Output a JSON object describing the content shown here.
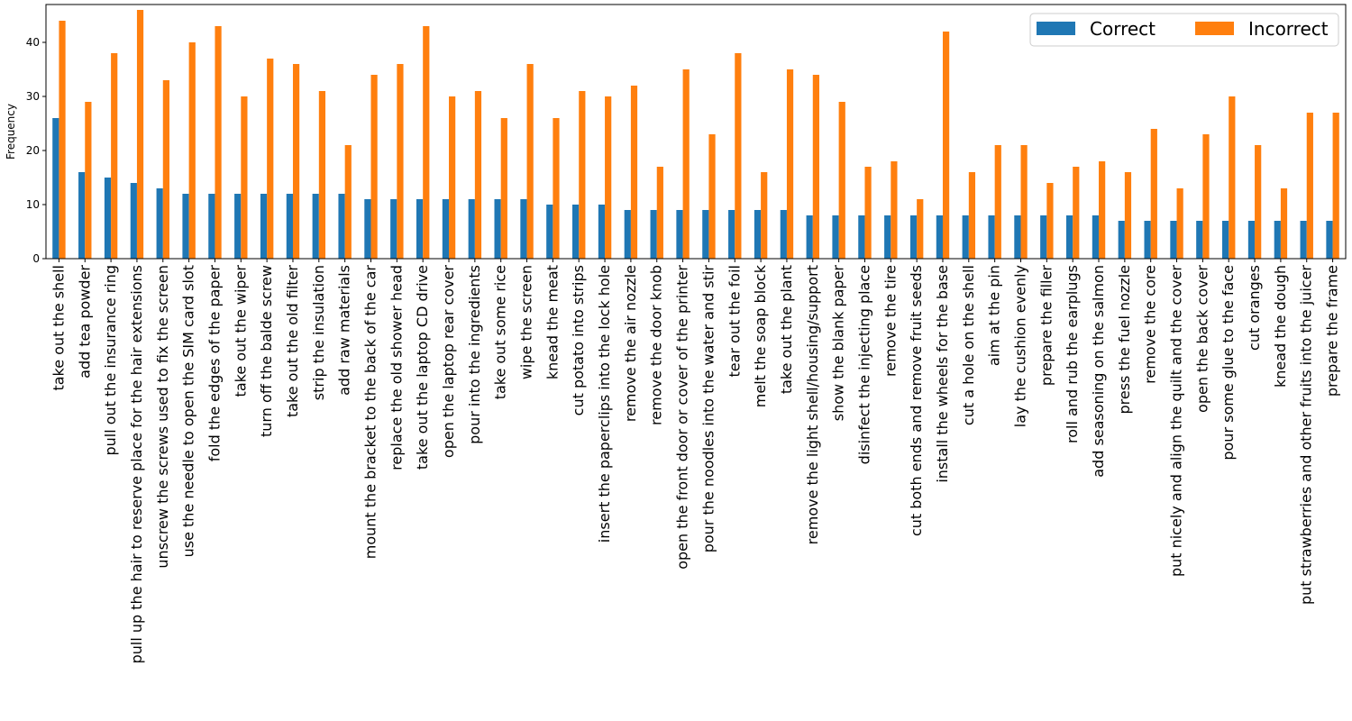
{
  "chart_data": {
    "type": "bar",
    "title": "",
    "xlabel": "",
    "ylabel": "Frequency",
    "ylim": [
      0,
      47
    ],
    "yticks": [
      0,
      10,
      20,
      30,
      40
    ],
    "grid": false,
    "legend": {
      "placement": "top-right",
      "ncol": 2
    },
    "categories": [
      "take out the shell",
      "add tea powder",
      "pull out the insurance ring",
      "pull up the hair to reserve place for the hair extensions",
      "unscrew the screws used to fix the screen",
      "use the needle to open the SIM card slot",
      "fold the edges of the paper",
      "take out the wiper",
      "turn off the balde screw",
      "take out the old filter",
      "strip the insulation",
      "add raw materials",
      "mount the bracket to the back of the car",
      "replace the old shower head",
      "take out the laptop CD drive",
      "open the laptop rear cover",
      "pour into the ingredients",
      "take out some rice",
      "wipe the screen",
      "knead the meat",
      "cut potato into strips",
      "insert the paperclips into the lock hole",
      "remove the air nozzle",
      "remove the door knob",
      "open the front door or cover of the printer",
      "pour the noodles into the water and stir",
      "tear out the foil",
      "melt the soap block",
      "take out the plant",
      "remove the light shell/housing/support",
      "show the blank paper",
      "disinfect the injecting place",
      "remove the tire",
      "cut both ends and remove fruit seeds",
      "install the wheels for the base",
      "cut a hole on the shell",
      "aim at the pin",
      "lay the cushion evenly",
      "prepare the filler",
      "roll and rub the earplugs",
      "add seasoning on the salmon",
      "press the fuel nozzle",
      "remove the core",
      "put nicely and align the quilt and the cover",
      "open the back cover",
      "pour some glue to the face",
      "cut oranges",
      "knead the dough",
      "put strawberries and other fruits into the juicer",
      "prepare the frame"
    ],
    "series": [
      {
        "name": "Correct",
        "color": "#1f77b4",
        "values": [
          26,
          16,
          15,
          14,
          13,
          12,
          12,
          12,
          12,
          12,
          12,
          12,
          11,
          11,
          11,
          11,
          11,
          11,
          11,
          10,
          10,
          10,
          9,
          9,
          9,
          9,
          9,
          9,
          9,
          8,
          8,
          8,
          8,
          8,
          8,
          8,
          8,
          8,
          8,
          8,
          8,
          7,
          7,
          7,
          7,
          7,
          7,
          7,
          7,
          7
        ]
      },
      {
        "name": "Incorrect",
        "color": "#ff7f0e",
        "values": [
          44,
          29,
          38,
          46,
          33,
          40,
          43,
          30,
          37,
          36,
          31,
          21,
          34,
          36,
          43,
          30,
          31,
          26,
          36,
          26,
          31,
          30,
          32,
          17,
          35,
          23,
          38,
          16,
          35,
          34,
          29,
          17,
          18,
          11,
          42,
          16,
          21,
          21,
          14,
          17,
          18,
          16,
          24,
          13,
          23,
          30,
          21,
          13,
          27,
          27
        ]
      }
    ]
  }
}
